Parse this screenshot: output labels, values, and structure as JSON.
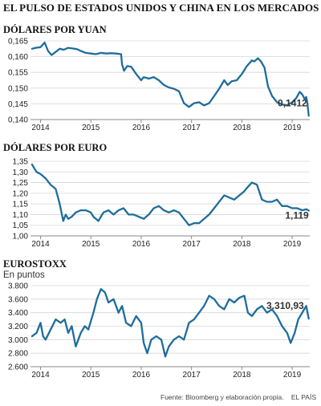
{
  "header": {
    "title": "EL PULSO DE ESTADOS UNIDOS Y CHINA EN LOS MERCADOS"
  },
  "footer": {
    "source": "Fuente: Bloomberg y elaboración propia.",
    "brand": "EL PAÍS"
  },
  "colors": {
    "line": "#1f6d9c",
    "grid": "#d6d6d6",
    "axis": "#888888",
    "text": "#222222"
  },
  "chart_data": [
    {
      "type": "line",
      "title": "DÓLARES POR YUAN",
      "subtitle": "",
      "xlabel": "",
      "ylabel": "",
      "xlim": [
        2013.8,
        2019.35
      ],
      "ylim": [
        0.14,
        0.165
      ],
      "y_ticks": [
        0.14,
        0.145,
        0.15,
        0.155,
        0.16,
        0.165
      ],
      "y_tick_labels": [
        "0,140",
        "0,145",
        "0,150",
        "0,155",
        "0,160",
        "0,165"
      ],
      "x_ticks": [
        2014,
        2015,
        2016,
        2017,
        2018,
        2019
      ],
      "x_tick_labels": [
        "2014",
        "2015",
        "2016",
        "2017",
        "2018",
        "2019"
      ],
      "grid": true,
      "end_label": "0,1412",
      "series": [
        {
          "x": [
            2013.83,
            2013.9,
            2014.0,
            2014.08,
            2014.15,
            2014.22,
            2014.3,
            2014.38,
            2014.46,
            2014.55,
            2014.63,
            2014.72,
            2014.8,
            2014.9,
            2015.0,
            2015.1,
            2015.2,
            2015.3,
            2015.4,
            2015.5,
            2015.6,
            2015.62,
            2015.66,
            2015.72,
            2015.8,
            2015.9,
            2016.0,
            2016.05,
            2016.15,
            2016.25,
            2016.35,
            2016.45,
            2016.55,
            2016.65,
            2016.75,
            2016.85,
            2016.95,
            2017.05,
            2017.15,
            2017.25,
            2017.35,
            2017.45,
            2017.55,
            2017.65,
            2017.72,
            2017.8,
            2017.9,
            2018.0,
            2018.1,
            2018.2,
            2018.25,
            2018.32,
            2018.38,
            2018.45,
            2018.52,
            2018.6,
            2018.7,
            2018.8,
            2018.9,
            2019.0,
            2019.08,
            2019.15,
            2019.2,
            2019.25,
            2019.28,
            2019.3,
            2019.33
          ],
          "y": [
            0.1625,
            0.1628,
            0.163,
            0.1645,
            0.1618,
            0.1605,
            0.1615,
            0.1625,
            0.1622,
            0.1628,
            0.1626,
            0.1624,
            0.1618,
            0.1612,
            0.161,
            0.1608,
            0.1612,
            0.161,
            0.1611,
            0.161,
            0.1608,
            0.1575,
            0.1555,
            0.157,
            0.1568,
            0.1545,
            0.1525,
            0.1535,
            0.153,
            0.1535,
            0.1525,
            0.151,
            0.1502,
            0.1498,
            0.149,
            0.1452,
            0.144,
            0.1452,
            0.1455,
            0.1445,
            0.1452,
            0.1475,
            0.1498,
            0.1525,
            0.151,
            0.1522,
            0.1525,
            0.1545,
            0.157,
            0.1588,
            0.1585,
            0.1595,
            0.1585,
            0.1565,
            0.1505,
            0.1475,
            0.1455,
            0.1448,
            0.1445,
            0.1455,
            0.1468,
            0.1488,
            0.148,
            0.1465,
            0.1472,
            0.1455,
            0.1412
          ]
        }
      ]
    },
    {
      "type": "line",
      "title": "DÓLARES POR EURO",
      "subtitle": "",
      "xlabel": "",
      "ylabel": "",
      "xlim": [
        2013.8,
        2019.35
      ],
      "ylim": [
        1.0,
        1.35
      ],
      "y_ticks": [
        1.0,
        1.05,
        1.1,
        1.15,
        1.2,
        1.25,
        1.3,
        1.35
      ],
      "y_tick_labels": [
        "1,00",
        "1,05",
        "1,10",
        "1,15",
        "1,20",
        "1,25",
        "1,30",
        "1,35"
      ],
      "x_ticks": [
        2014,
        2015,
        2016,
        2017,
        2018,
        2019
      ],
      "x_tick_labels": [
        "2014",
        "2015",
        "2016",
        "2017",
        "2018",
        "2019"
      ],
      "grid": true,
      "end_label": "1,119",
      "series": [
        {
          "x": [
            2013.83,
            2013.92,
            2014.0,
            2014.1,
            2014.2,
            2014.3,
            2014.38,
            2014.45,
            2014.5,
            2014.55,
            2014.62,
            2014.7,
            2014.8,
            2014.9,
            2015.0,
            2015.05,
            2015.15,
            2015.25,
            2015.35,
            2015.45,
            2015.55,
            2015.65,
            2015.75,
            2015.85,
            2015.95,
            2016.05,
            2016.15,
            2016.25,
            2016.35,
            2016.45,
            2016.55,
            2016.65,
            2016.75,
            2016.85,
            2016.95,
            2017.05,
            2017.15,
            2017.25,
            2017.35,
            2017.45,
            2017.55,
            2017.65,
            2017.75,
            2017.85,
            2017.95,
            2018.05,
            2018.12,
            2018.2,
            2018.3,
            2018.4,
            2018.5,
            2018.6,
            2018.7,
            2018.8,
            2018.9,
            2019.0,
            2019.1,
            2019.2,
            2019.28,
            2019.33
          ],
          "y": [
            1.335,
            1.3,
            1.29,
            1.27,
            1.24,
            1.22,
            1.15,
            1.07,
            1.1,
            1.08,
            1.09,
            1.11,
            1.12,
            1.12,
            1.11,
            1.09,
            1.07,
            1.11,
            1.12,
            1.1,
            1.12,
            1.13,
            1.1,
            1.1,
            1.09,
            1.08,
            1.1,
            1.13,
            1.14,
            1.12,
            1.11,
            1.12,
            1.11,
            1.08,
            1.05,
            1.06,
            1.06,
            1.08,
            1.1,
            1.13,
            1.16,
            1.19,
            1.18,
            1.17,
            1.19,
            1.21,
            1.23,
            1.25,
            1.24,
            1.17,
            1.16,
            1.16,
            1.17,
            1.14,
            1.14,
            1.13,
            1.13,
            1.12,
            1.125,
            1.119
          ]
        }
      ]
    },
    {
      "type": "line",
      "title": "EUROSTOXX",
      "subtitle": "En puntos",
      "xlabel": "",
      "ylabel": "",
      "xlim": [
        2013.8,
        2019.35
      ],
      "ylim": [
        2600,
        3800
      ],
      "y_ticks": [
        2600,
        2800,
        3000,
        3200,
        3400,
        3600,
        3800
      ],
      "y_tick_labels": [
        "2.600",
        "2.800",
        "3.000",
        "3.200",
        "3.400",
        "3.600",
        "3.800"
      ],
      "x_ticks": [
        2014,
        2015,
        2016,
        2017,
        2018,
        2019
      ],
      "x_tick_labels": [
        "2014",
        "2015",
        "2016",
        "2017",
        "2018",
        "2019"
      ],
      "grid": true,
      "end_label": "3.310,93",
      "series": [
        {
          "x": [
            2013.83,
            2013.92,
            2014.0,
            2014.05,
            2014.1,
            2014.2,
            2014.3,
            2014.4,
            2014.48,
            2014.55,
            2014.62,
            2014.7,
            2014.8,
            2014.88,
            2014.95,
            2015.05,
            2015.12,
            2015.2,
            2015.28,
            2015.35,
            2015.45,
            2015.55,
            2015.62,
            2015.7,
            2015.8,
            2015.9,
            2016.0,
            2016.05,
            2016.12,
            2016.2,
            2016.3,
            2016.4,
            2016.48,
            2016.55,
            2016.65,
            2016.75,
            2016.85,
            2016.95,
            2017.05,
            2017.15,
            2017.25,
            2017.35,
            2017.45,
            2017.55,
            2017.65,
            2017.75,
            2017.85,
            2017.95,
            2018.05,
            2018.12,
            2018.2,
            2018.3,
            2018.4,
            2018.5,
            2018.6,
            2018.7,
            2018.8,
            2018.9,
            2018.97,
            2019.05,
            2019.12,
            2019.2,
            2019.28,
            2019.33
          ],
          "y": [
            3050,
            3100,
            3250,
            3050,
            3000,
            3150,
            3300,
            3250,
            3300,
            3100,
            3200,
            2900,
            3100,
            3200,
            3150,
            3400,
            3600,
            3750,
            3700,
            3550,
            3600,
            3400,
            3500,
            3250,
            3200,
            3350,
            3250,
            2950,
            2800,
            3000,
            3050,
            3000,
            2750,
            2900,
            3000,
            3050,
            3000,
            3250,
            3300,
            3400,
            3500,
            3650,
            3600,
            3500,
            3450,
            3600,
            3550,
            3620,
            3650,
            3400,
            3350,
            3450,
            3500,
            3400,
            3450,
            3350,
            3200,
            3100,
            2950,
            3100,
            3300,
            3400,
            3500,
            3310.93
          ]
        }
      ]
    }
  ]
}
